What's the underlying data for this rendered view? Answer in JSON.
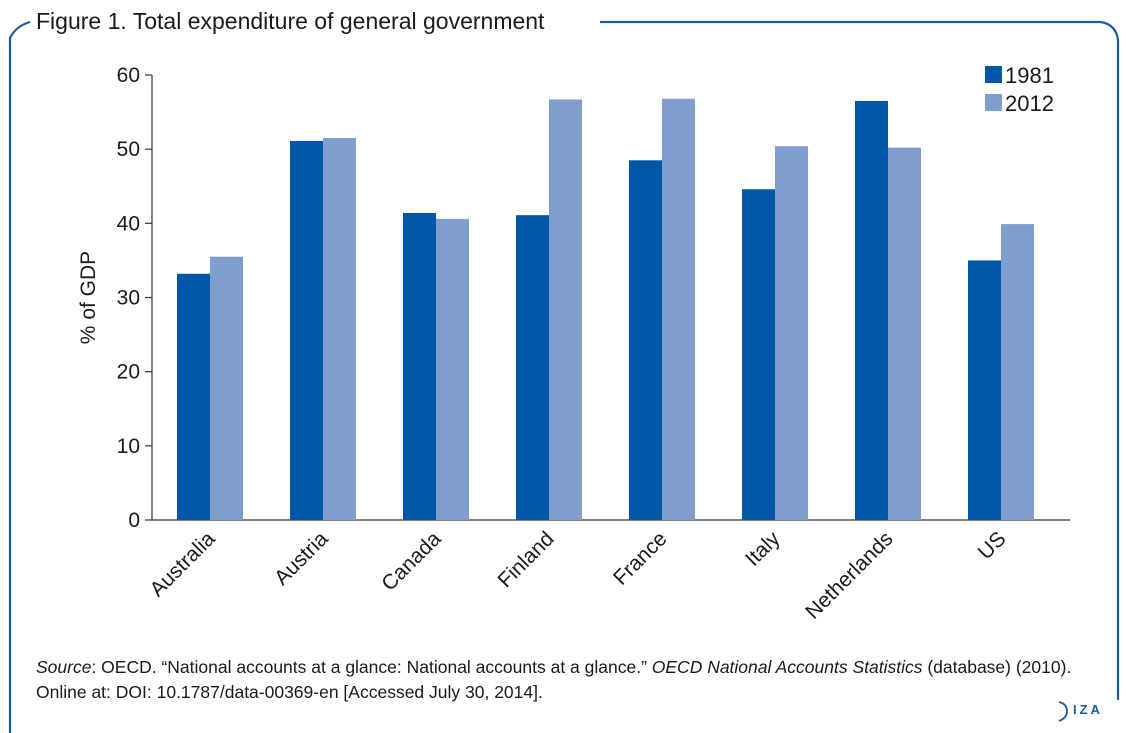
{
  "figure": {
    "title": "Figure 1. Total expenditure of general government"
  },
  "chart_data": {
    "type": "bar",
    "title": "",
    "xlabel": "",
    "ylabel": "% of GDP",
    "ylim": [
      0,
      60
    ],
    "yticks": [
      "0",
      "10",
      "20",
      "30",
      "40",
      "50",
      "60"
    ],
    "categories": [
      "Australia",
      "Austria",
      "Canada",
      "Finland",
      "France",
      "Italy",
      "Netherlands",
      "US"
    ],
    "series": [
      {
        "name": "1981",
        "color": "#0057a8",
        "values": [
          33.2,
          51.1,
          41.4,
          41.1,
          48.5,
          44.6,
          56.5,
          35.0
        ]
      },
      {
        "name": "2012",
        "color": "#7f9dcd",
        "values": [
          35.5,
          51.5,
          40.6,
          56.7,
          56.8,
          50.4,
          50.2,
          39.9
        ]
      }
    ],
    "legend_position": "top-right",
    "grid": false
  },
  "source": {
    "label": "Source",
    "text_before": ": OECD. “National accounts at a glance: National accounts at a glance.” ",
    "publication": "OECD National Accounts Statistics",
    "text_after": " (database) (2010). Online at: DOI: 10.1787/data-00369-en [Accessed July 30, 2014]."
  },
  "logo": {
    "text": "IZA"
  },
  "colors": {
    "frame": "#1d5aa8",
    "series_1981": "#0057a8",
    "series_2012": "#7f9dcd"
  }
}
